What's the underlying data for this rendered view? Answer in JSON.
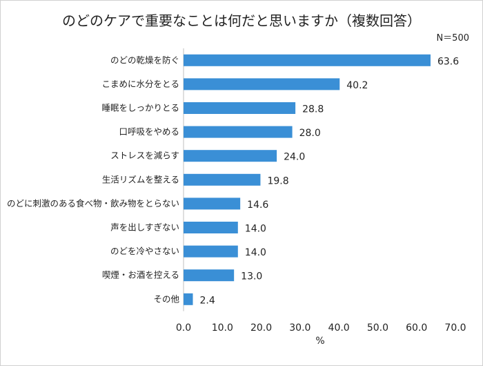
{
  "chart_data": {
    "type": "bar",
    "orientation": "horizontal",
    "title": "のどのケアで重要なことは何だと思いますか（複数回答）",
    "note": "N＝500",
    "categories": [
      "のどの乾燥を防ぐ",
      "こまめに水分をとる",
      "睡眠をしっかりとる",
      "口呼吸をやめる",
      "ストレスを減らす",
      "生活リズムを整える",
      "のどに刺激のある食べ物・飲み物をとらない",
      "声を出しすぎない",
      "のどを冷やさない",
      "喫煙・お酒を控える",
      "その他"
    ],
    "values": [
      63.6,
      40.2,
      28.8,
      28.0,
      24.0,
      19.8,
      14.6,
      14.0,
      14.0,
      13.0,
      2.4
    ],
    "value_labels": [
      "63.6",
      "40.2",
      "28.8",
      "28.0",
      "24.0",
      "19.8",
      "14.6",
      "14.0",
      "14.0",
      "13.0",
      "2.4"
    ],
    "xlim": [
      0,
      70
    ],
    "xticks": [
      "0.0",
      "10.0",
      "20.0",
      "30.0",
      "40.0",
      "50.0",
      "60.0",
      "70.0"
    ],
    "xlabel": "%",
    "bar_color": "#3a8fd6",
    "grid": false
  }
}
